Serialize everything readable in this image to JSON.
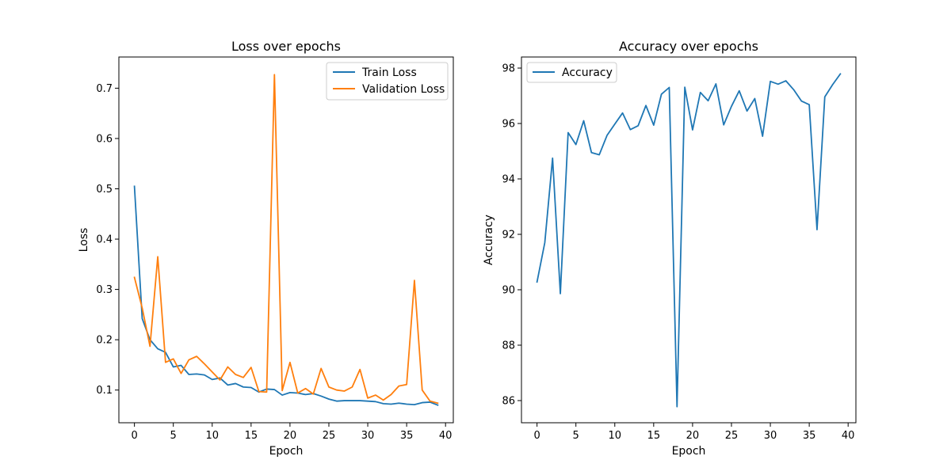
{
  "chart_data": [
    {
      "type": "line",
      "title": "Loss over epochs",
      "xlabel": "Epoch",
      "ylabel": "Loss",
      "xlim": [
        -2,
        41
      ],
      "ylim": [
        0.035,
        0.762
      ],
      "xticks": [
        0,
        5,
        10,
        15,
        20,
        25,
        30,
        35,
        40
      ],
      "yticks": [
        0.1,
        0.2,
        0.3,
        0.4,
        0.5,
        0.6,
        0.7
      ],
      "xtick_labels": [
        "0",
        "5",
        "10",
        "15",
        "20",
        "25",
        "30",
        "35",
        "40"
      ],
      "ytick_labels": [
        "0.1",
        "0.2",
        "0.3",
        "0.4",
        "0.5",
        "0.6",
        "0.7"
      ],
      "grid": false,
      "legend_position": "top-right",
      "x": [
        0,
        1,
        2,
        3,
        4,
        5,
        6,
        7,
        8,
        9,
        10,
        11,
        12,
        13,
        14,
        15,
        16,
        17,
        18,
        19,
        20,
        21,
        22,
        23,
        24,
        25,
        26,
        27,
        28,
        29,
        30,
        31,
        32,
        33,
        34,
        35,
        36,
        37,
        38,
        39
      ],
      "series": [
        {
          "name": "Train Loss",
          "color": "#1f77b4",
          "values": [
            0.505,
            0.242,
            0.2,
            0.182,
            0.175,
            0.146,
            0.149,
            0.131,
            0.132,
            0.13,
            0.121,
            0.124,
            0.11,
            0.113,
            0.106,
            0.105,
            0.096,
            0.102,
            0.101,
            0.09,
            0.095,
            0.094,
            0.091,
            0.093,
            0.088,
            0.082,
            0.078,
            0.079,
            0.079,
            0.079,
            0.078,
            0.077,
            0.073,
            0.072,
            0.074,
            0.072,
            0.071,
            0.075,
            0.076,
            0.07
          ]
        },
        {
          "name": "Validation Loss",
          "color": "#ff7f0e",
          "values": [
            0.324,
            0.263,
            0.187,
            0.365,
            0.155,
            0.162,
            0.133,
            0.16,
            0.167,
            0.152,
            0.136,
            0.12,
            0.146,
            0.131,
            0.125,
            0.145,
            0.097,
            0.096,
            0.727,
            0.099,
            0.155,
            0.094,
            0.103,
            0.092,
            0.143,
            0.106,
            0.1,
            0.098,
            0.106,
            0.141,
            0.084,
            0.09,
            0.08,
            0.091,
            0.108,
            0.111,
            0.318,
            0.1,
            0.078,
            0.074
          ]
        }
      ]
    },
    {
      "type": "line",
      "title": "Accuracy over epochs",
      "xlabel": "Epoch",
      "ylabel": "Accuracy",
      "xlim": [
        -2,
        41
      ],
      "ylim": [
        85.2,
        98.4
      ],
      "xticks": [
        0,
        5,
        10,
        15,
        20,
        25,
        30,
        35,
        40
      ],
      "yticks": [
        86,
        88,
        90,
        92,
        94,
        96,
        98
      ],
      "xtick_labels": [
        "0",
        "5",
        "10",
        "15",
        "20",
        "25",
        "30",
        "35",
        "40"
      ],
      "ytick_labels": [
        "86",
        "88",
        "90",
        "92",
        "94",
        "96",
        "98"
      ],
      "grid": false,
      "legend_position": "top-left",
      "x": [
        0,
        1,
        2,
        3,
        4,
        5,
        6,
        7,
        8,
        9,
        10,
        11,
        12,
        13,
        14,
        15,
        16,
        17,
        18,
        19,
        20,
        21,
        22,
        23,
        24,
        25,
        26,
        27,
        28,
        29,
        30,
        31,
        32,
        33,
        34,
        35,
        36,
        37,
        38,
        39
      ],
      "series": [
        {
          "name": "Accuracy",
          "color": "#1f77b4",
          "values": [
            90.28,
            91.7,
            94.75,
            89.86,
            95.67,
            95.24,
            96.1,
            94.95,
            94.87,
            95.57,
            95.98,
            96.38,
            95.78,
            95.92,
            96.65,
            95.94,
            97.06,
            97.3,
            85.78,
            97.31,
            95.77,
            97.12,
            96.82,
            97.43,
            95.95,
            96.62,
            97.18,
            96.45,
            96.9,
            95.54,
            97.52,
            97.42,
            97.54,
            97.22,
            96.81,
            96.68,
            92.17,
            96.96,
            97.4,
            97.79
          ]
        }
      ]
    }
  ]
}
